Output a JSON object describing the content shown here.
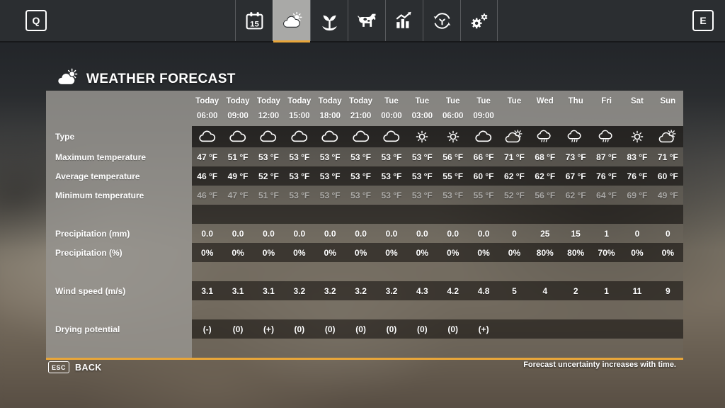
{
  "colors": {
    "accent": "#e8a63a",
    "topbar_bg": "#2b2e31",
    "active_tab_bg": "#a9a9a7"
  },
  "topbar": {
    "prev_key": "Q",
    "next_key": "E",
    "tabs": [
      {
        "id": "calendar",
        "icon": "calendar-icon",
        "badge": "15",
        "active": false
      },
      {
        "id": "weather",
        "icon": "weather-icon",
        "active": true
      },
      {
        "id": "crops",
        "icon": "sprout-icon",
        "active": false
      },
      {
        "id": "animals",
        "icon": "cow-icon",
        "active": false
      },
      {
        "id": "statistics",
        "icon": "chart-icon",
        "active": false
      },
      {
        "id": "production",
        "icon": "cycle-icon",
        "active": false
      },
      {
        "id": "settings",
        "icon": "gears-icon",
        "active": false
      }
    ]
  },
  "header": {
    "title": "WEATHER FORECAST",
    "icon": "weather-forecast-icon"
  },
  "forecast": {
    "columns": [
      {
        "day": "Today",
        "time": "06:00"
      },
      {
        "day": "Today",
        "time": "09:00"
      },
      {
        "day": "Today",
        "time": "12:00"
      },
      {
        "day": "Today",
        "time": "15:00"
      },
      {
        "day": "Today",
        "time": "18:00"
      },
      {
        "day": "Today",
        "time": "21:00"
      },
      {
        "day": "Tue",
        "time": "00:00"
      },
      {
        "day": "Tue",
        "time": "03:00"
      },
      {
        "day": "Tue",
        "time": "06:00"
      },
      {
        "day": "Tue",
        "time": "09:00"
      },
      {
        "day": "Tue",
        "time": ""
      },
      {
        "day": "Wed",
        "time": ""
      },
      {
        "day": "Thu",
        "time": ""
      },
      {
        "day": "Fri",
        "time": ""
      },
      {
        "day": "Sat",
        "time": ""
      },
      {
        "day": "Sun",
        "time": ""
      }
    ],
    "rows": [
      {
        "label": "Type",
        "kind": "icons",
        "shade": "dark",
        "values": [
          "cloudy",
          "cloudy",
          "cloudy",
          "cloudy",
          "cloudy",
          "cloudy",
          "cloudy",
          "sunny",
          "sunny",
          "cloudy",
          "partly",
          "rain",
          "rain",
          "rain",
          "sunny",
          "partly"
        ]
      },
      {
        "label": "Maximum temperature",
        "shade": "light",
        "values": [
          "47 °F",
          "51 °F",
          "53 °F",
          "53 °F",
          "53 °F",
          "53 °F",
          "53 °F",
          "53 °F",
          "56 °F",
          "66 °F",
          "71 °F",
          "68 °F",
          "73 °F",
          "87 °F",
          "83 °F",
          "71 °F"
        ]
      },
      {
        "label": "Average temperature",
        "shade": "dark",
        "values": [
          "46 °F",
          "49 °F",
          "52 °F",
          "53 °F",
          "53 °F",
          "53 °F",
          "53 °F",
          "53 °F",
          "55 °F",
          "60 °F",
          "62 °F",
          "62 °F",
          "67 °F",
          "76 °F",
          "76 °F",
          "60 °F"
        ]
      },
      {
        "label": "Minimum temperature",
        "shade": "light",
        "muted": true,
        "values": [
          "46 °F",
          "47 °F",
          "51 °F",
          "53 °F",
          "53 °F",
          "53 °F",
          "53 °F",
          "53 °F",
          "53 °F",
          "55 °F",
          "52 °F",
          "56 °F",
          "62 °F",
          "64 °F",
          "69 °F",
          "49 °F"
        ]
      },
      {
        "label": "",
        "shade": "dark",
        "spacer": true,
        "values": []
      },
      {
        "label": "Precipitation (mm)",
        "shade": "light",
        "values": [
          "0.0",
          "0.0",
          "0.0",
          "0.0",
          "0.0",
          "0.0",
          "0.0",
          "0.0",
          "0.0",
          "0.0",
          "0",
          "25",
          "15",
          "1",
          "0",
          "0"
        ]
      },
      {
        "label": "Precipitation (%)",
        "shade": "dark",
        "values": [
          "0%",
          "0%",
          "0%",
          "0%",
          "0%",
          "0%",
          "0%",
          "0%",
          "0%",
          "0%",
          "0%",
          "80%",
          "80%",
          "70%",
          "0%",
          "0%"
        ]
      },
      {
        "label": "",
        "shade": "light",
        "spacer": true,
        "values": []
      },
      {
        "label": "Wind speed (m/s)",
        "shade": "dark",
        "values": [
          "3.1",
          "3.1",
          "3.1",
          "3.2",
          "3.2",
          "3.2",
          "3.2",
          "4.3",
          "4.2",
          "4.8",
          "5",
          "4",
          "2",
          "1",
          "11",
          "9"
        ]
      },
      {
        "label": "",
        "shade": "light",
        "spacer": true,
        "values": []
      },
      {
        "label": "Drying potential",
        "shade": "dark",
        "values": [
          "(-)",
          "(0)",
          "(+)",
          "(0)",
          "(0)",
          "(0)",
          "(0)",
          "(0)",
          "(0)",
          "(+)",
          "",
          "",
          "",
          "",
          "",
          ""
        ]
      },
      {
        "label": "",
        "shade": "light",
        "spacer": true,
        "values": []
      }
    ]
  },
  "footer": {
    "back_key": "ESC",
    "back_label": "BACK",
    "note": "Forecast uncertainty increases with time."
  }
}
